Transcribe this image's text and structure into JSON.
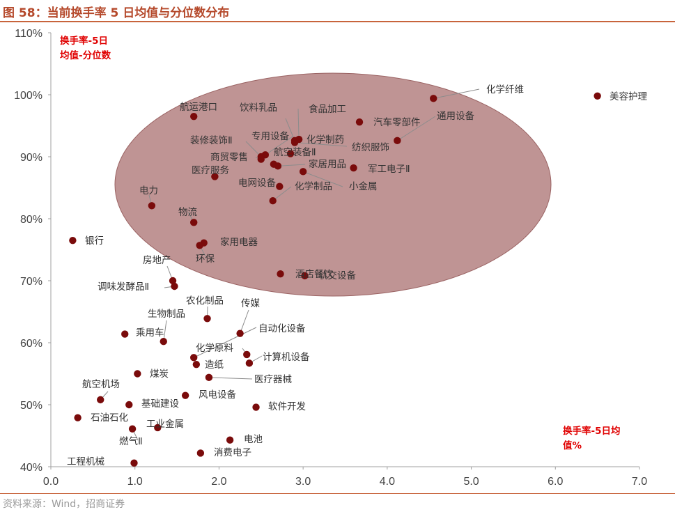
{
  "figure": {
    "title": "图 58：当前换手率 5 日均值与分位数分布",
    "source": "资料来源：Wind，招商证券"
  },
  "colors": {
    "point": "#7a0b0b",
    "ellipse": "#a66b6b",
    "accent": "#b5492b",
    "note": "#e00000"
  },
  "chart_data": {
    "type": "scatter",
    "y_note": [
      "换手率-5日",
      "均值-分位数"
    ],
    "x_note": [
      "换手率-5日均",
      "值%"
    ],
    "xlim": [
      0,
      7
    ],
    "ylim": [
      40,
      110
    ],
    "x_ticks": [
      "0.0",
      "1.0",
      "2.0",
      "3.0",
      "4.0",
      "5.0",
      "6.0",
      "7.0"
    ],
    "y_ticks": [
      "40%",
      "50%",
      "60%",
      "70%",
      "80%",
      "90%",
      "100%",
      "110%"
    ],
    "grid": false,
    "points": [
      {
        "name": "美容护理",
        "x": 6.5,
        "y": 99.8
      },
      {
        "name": "化学纤维",
        "x": 4.55,
        "y": 99.4
      },
      {
        "name": "航运港口",
        "x": 1.7,
        "y": 96.5
      },
      {
        "name": "汽车零部件",
        "x": 3.67,
        "y": 95.6
      },
      {
        "name": "通用设备",
        "x": 4.12,
        "y": 92.6
      },
      {
        "name": "食品加工",
        "x": 2.95,
        "y": 92.8
      },
      {
        "name": "饮料乳品",
        "x": 2.9,
        "y": 92.6
      },
      {
        "name": "专用设备",
        "x": 2.55,
        "y": 90.3
      },
      {
        "name": "化学制药",
        "x": 2.85,
        "y": 90.5
      },
      {
        "name": "纺织服饰",
        "x": 2.9,
        "y": 92.3
      },
      {
        "name": "装修装饰Ⅱ",
        "x": 2.5,
        "y": 90.0
      },
      {
        "name": "航空装备Ⅱ",
        "x": 2.65,
        "y": 88.8
      },
      {
        "name": "商贸零售",
        "x": 2.5,
        "y": 89.6
      },
      {
        "name": "家居用品",
        "x": 2.7,
        "y": 88.5
      },
      {
        "name": "军工电子Ⅱ",
        "x": 3.6,
        "y": 88.2
      },
      {
        "name": "医疗服务",
        "x": 1.95,
        "y": 86.8
      },
      {
        "name": "小金属",
        "x": 3.0,
        "y": 87.6
      },
      {
        "name": "电网设备",
        "x": 2.72,
        "y": 85.2
      },
      {
        "name": "化学制品",
        "x": 2.64,
        "y": 82.9
      },
      {
        "name": "电力",
        "x": 1.2,
        "y": 82.1
      },
      {
        "name": "物流",
        "x": 1.7,
        "y": 79.4
      },
      {
        "name": "银行",
        "x": 0.26,
        "y": 76.5
      },
      {
        "name": "家用电器",
        "x": 1.82,
        "y": 76.1
      },
      {
        "name": "环保",
        "x": 1.77,
        "y": 75.7
      },
      {
        "name": "酒店餐饮",
        "x": 2.73,
        "y": 71.1
      },
      {
        "name": "轨交设备",
        "x": 3.02,
        "y": 70.8
      },
      {
        "name": "房地产",
        "x": 1.45,
        "y": 70.0
      },
      {
        "name": "调味发酵品Ⅱ",
        "x": 1.47,
        "y": 69.1
      },
      {
        "name": "农化制品",
        "x": 1.86,
        "y": 63.9
      },
      {
        "name": "传媒",
        "x": 2.25,
        "y": 61.5
      },
      {
        "name": "乘用车",
        "x": 0.88,
        "y": 61.4
      },
      {
        "name": "生物制品",
        "x": 1.34,
        "y": 60.2
      },
      {
        "name": "化学原料",
        "x": 2.33,
        "y": 58.1
      },
      {
        "name": "计算机设备",
        "x": 2.36,
        "y": 56.7
      },
      {
        "name": "自动化设备",
        "x": 1.7,
        "y": 57.6
      },
      {
        "name": "造纸",
        "x": 1.73,
        "y": 56.5
      },
      {
        "name": "煤炭",
        "x": 1.03,
        "y": 55.0
      },
      {
        "name": "医疗器械",
        "x": 1.88,
        "y": 54.4
      },
      {
        "name": "风电设备",
        "x": 1.6,
        "y": 51.5
      },
      {
        "name": "航空机场",
        "x": 0.59,
        "y": 50.8
      },
      {
        "name": "基础建设",
        "x": 0.93,
        "y": 50.0
      },
      {
        "name": "软件开发",
        "x": 2.44,
        "y": 49.6
      },
      {
        "name": "石油石化",
        "x": 0.32,
        "y": 47.9
      },
      {
        "name": "工业金属",
        "x": 1.27,
        "y": 46.3
      },
      {
        "name": "燃气Ⅱ",
        "x": 0.97,
        "y": 46.1
      },
      {
        "name": "电池",
        "x": 2.13,
        "y": 44.3
      },
      {
        "name": "消费电子",
        "x": 1.78,
        "y": 42.2
      },
      {
        "name": "工程机械",
        "x": 0.99,
        "y": 40.6
      }
    ]
  }
}
